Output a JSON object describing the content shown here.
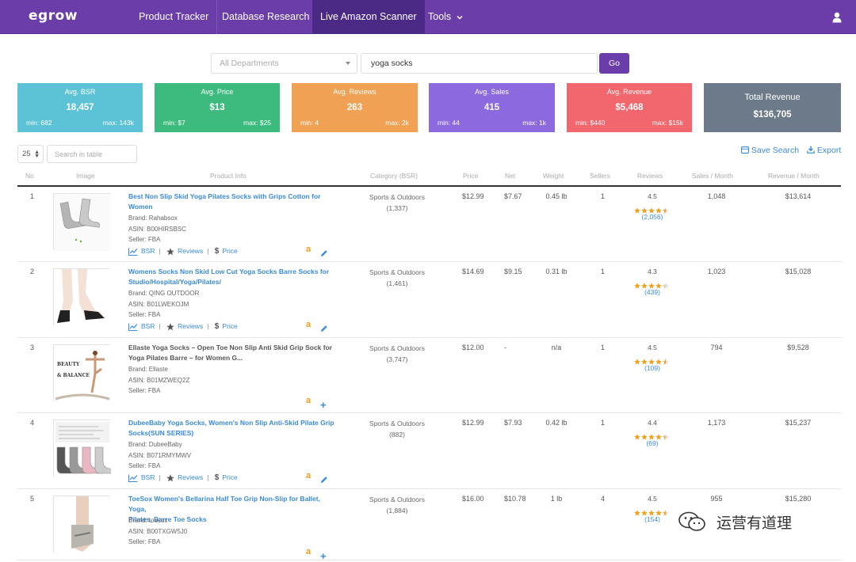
{
  "nav": {
    "logo": "egrow",
    "items": [
      "Product Tracker",
      "Database Research",
      "Live Amazon Scanner",
      "Tools"
    ],
    "active_index": 2
  },
  "search": {
    "department_placeholder": "All Departments",
    "query": "yoga socks",
    "go_label": "Go"
  },
  "stats": [
    {
      "label": "Avg. BSR",
      "value": "18,457",
      "min": "min: 682",
      "max": "max: 143k",
      "color": "#5bc3d5"
    },
    {
      "label": "Avg. Price",
      "value": "$13",
      "min": "min: $7",
      "max": "max: $25",
      "color": "#3dbb7e"
    },
    {
      "label": "Avg. Reviews",
      "value": "263",
      "min": "min: 4",
      "max": "max: 2k",
      "color": "#f0a154"
    },
    {
      "label": "Avg. Sales",
      "value": "415",
      "min": "min: 44",
      "max": "max: 1k",
      "color": "#8c69de"
    },
    {
      "label": "Avg. Revenue",
      "value": "$5,468",
      "min": "min: $440",
      "max": "max: $15k",
      "color": "#f1676d"
    },
    {
      "label": "Total Revenue",
      "value": "$136,705",
      "color": "#6c7a89"
    }
  ],
  "table_controls": {
    "page_size": "25",
    "search_placeholder": "Search in table",
    "save_search": "Save Search",
    "export": "Export"
  },
  "columns": [
    "No",
    "Image",
    "Product Info",
    "Category (BSR)",
    "Price",
    "Net",
    "Weight",
    "Sellers",
    "Reviews",
    "Sales / Month",
    "Revenue / Month"
  ],
  "products": [
    {
      "no": "1",
      "title1": "Best Non Slip Skid Yoga Pilates Socks with Grips Cotton for",
      "title2": "Women",
      "linked": true,
      "brand": "Brand: Rahabsox",
      "asin": "ASIN: B00HIRSBSC",
      "seller": "Seller: FBA",
      "cat": "Sports & Outdoors",
      "bsr": "(1,337)",
      "price": "$12.99",
      "net": "$7.67",
      "weight": "0.45 lb",
      "sellers": "1",
      "rating": "4.5",
      "rating_value": 4.5,
      "reviews": "(2,056)",
      "sales": "1,048",
      "revenue": "$13,614",
      "action": "edit"
    },
    {
      "no": "2",
      "title1": "Womens Socks Non Skid Low Cut Yoga Socks Barre Socks for",
      "title2": "Studio/Hospital/Yoga/Pilates/",
      "linked": true,
      "brand": "Brand: QING OUTDOOR",
      "asin": "ASIN: B01LWEKOJM",
      "seller": "Seller: FBA",
      "cat": "Sports & Outdoors",
      "bsr": "(1,461)",
      "price": "$14.69",
      "net": "$9.15",
      "weight": "0.31 lb",
      "sellers": "1",
      "rating": "4.3",
      "rating_value": 4.3,
      "reviews": "(439)",
      "sales": "1,023",
      "revenue": "$15,028",
      "action": "edit"
    },
    {
      "no": "3",
      "title1": "Ellaste Yoga Socks – Open Toe Non Slip Anti Skid Grip Sock for",
      "title2": "Yoga Pilates Barre – for Women G...",
      "linked": false,
      "brand": "Brand: Ellaste",
      "asin": "ASIN: B01MZWEQ2Z",
      "seller": "Seller: FBA",
      "cat": "Sports & Outdoors",
      "bsr": "(3,747)",
      "price": "$12.00",
      "net": "-",
      "weight": "n/a",
      "sellers": "1",
      "rating": "4.5",
      "rating_value": 4.5,
      "reviews": "(109)",
      "sales": "794",
      "revenue": "$9,528",
      "action": "plus",
      "image_text": "BEAUTY & BALANCE"
    },
    {
      "no": "4",
      "title1": "DubeeBaby Yoga Socks, Women's Non Slip Anti-Skid Pilate Grip",
      "title2": "Socks(SUN SERIES)",
      "linked": true,
      "brand": "Brand: DubeeBaby",
      "asin": "ASIN: B071RMYMWV",
      "seller": "Seller: FBA",
      "cat": "Sports & Outdoors",
      "bsr": "(882)",
      "price": "$12.99",
      "net": "$7.93",
      "weight": "0.42 lb",
      "sellers": "1",
      "rating": "4.4",
      "rating_value": 4.4,
      "reviews": "(69)",
      "sales": "1,173",
      "revenue": "$15,237",
      "action": "edit"
    },
    {
      "no": "5",
      "title1": "ToeSox Women's Bellarina Half Toe Grip Non-Slip for Ballet, Yoga,",
      "title2": "Pilates, Barre Toe Socks",
      "linked": true,
      "brand": "Brand: toesox",
      "asin": "ASIN: B00TXGW5J0",
      "seller": "Seller: FBA",
      "cat": "Sports & Outdoors",
      "bsr": "(1,884)",
      "price": "$16.00",
      "net": "$10.78",
      "weight": "1 lb",
      "sellers": "4",
      "rating": "4.5",
      "rating_value": 4.5,
      "reviews": "(154)",
      "sales": "955",
      "revenue": "$15,280",
      "action": "plus"
    }
  ],
  "row_links": {
    "bsr": "BSR",
    "reviews": "Reviews",
    "price": "Price"
  },
  "watermark": "运营有道理"
}
